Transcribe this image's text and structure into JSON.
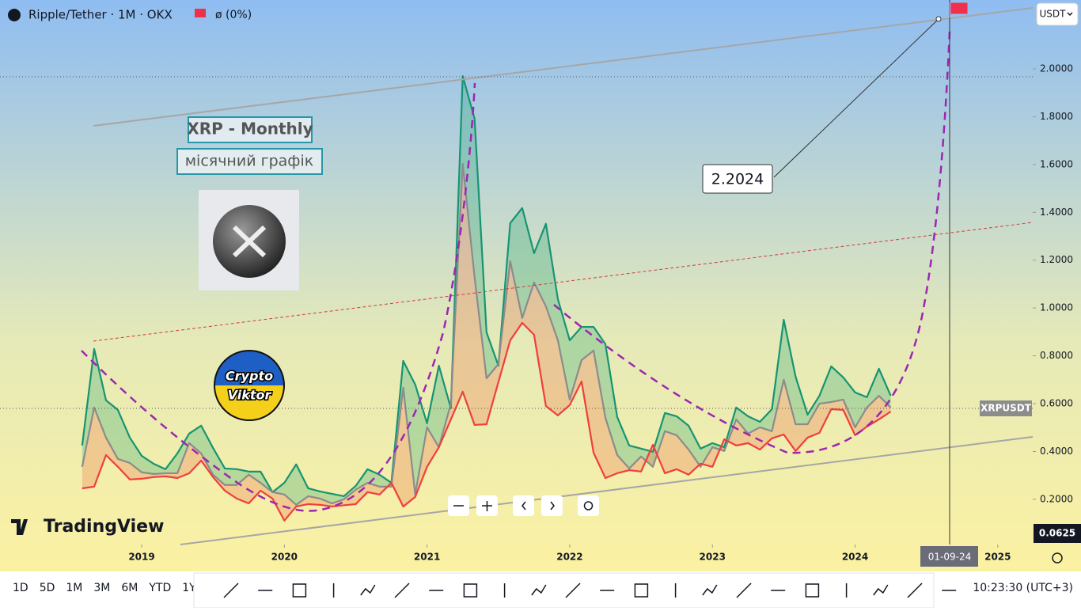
{
  "header": {
    "symbol": "Ripple/Tether · 1M · OKX",
    "change": "ø (0%)",
    "currency": "USDT"
  },
  "chart_data": {
    "type": "line",
    "x": [
      2018.583,
      2018.667,
      2018.75,
      2018.833,
      2018.917,
      2019,
      2019.083,
      2019.167,
      2019.25,
      2019.333,
      2019.417,
      2019.5,
      2019.583,
      2019.667,
      2019.75,
      2019.833,
      2019.917,
      2020,
      2020.083,
      2020.167,
      2020.25,
      2020.333,
      2020.417,
      2020.5,
      2020.583,
      2020.667,
      2020.75,
      2020.833,
      2020.917,
      2021,
      2021.083,
      2021.167,
      2021.25,
      2021.333,
      2021.417,
      2021.5,
      2021.583,
      2021.667,
      2021.75,
      2021.833,
      2021.917,
      2022,
      2022.083,
      2022.167,
      2022.25,
      2022.333,
      2022.417,
      2022.5,
      2022.583,
      2022.667,
      2022.75,
      2022.833,
      2022.917,
      2023,
      2023.083,
      2023.167,
      2023.25,
      2023.333,
      2023.417,
      2023.5,
      2023.583,
      2023.667,
      2023.75,
      2023.833,
      2023.917,
      2024,
      2024.083,
      2024.167,
      2024.25
    ],
    "series": [
      {
        "color": "#169473",
        "values": [
          0.425,
          0.829,
          0.614,
          0.574,
          0.458,
          0.382,
          0.349,
          0.326,
          0.392,
          0.475,
          0.508,
          0.415,
          0.329,
          0.326,
          0.316,
          0.316,
          0.23,
          0.269,
          0.346,
          0.246,
          0.233,
          0.223,
          0.213,
          0.256,
          0.326,
          0.303,
          0.269,
          0.779,
          0.68,
          0.518,
          0.759,
          0.581,
          1.97,
          1.792,
          0.898,
          0.759,
          1.355,
          1.418,
          1.229,
          1.352,
          1.037,
          0.865,
          0.921,
          0.921,
          0.849,
          0.544,
          0.425,
          0.412,
          0.399,
          0.561,
          0.547,
          0.508,
          0.412,
          0.435,
          0.418,
          0.584,
          0.547,
          0.524,
          0.577,
          0.951,
          0.713,
          0.554,
          0.633,
          0.756,
          0.71,
          0.647,
          0.627,
          0.746,
          0.633
        ]
      },
      {
        "color": "#8c8c8c",
        "values": [
          0.336,
          0.584,
          0.458,
          0.369,
          0.352,
          0.313,
          0.306,
          0.309,
          0.309,
          0.435,
          0.392,
          0.303,
          0.26,
          0.26,
          0.303,
          0.269,
          0.23,
          0.22,
          0.177,
          0.213,
          0.203,
          0.183,
          0.2,
          0.24,
          0.269,
          0.253,
          0.253,
          0.667,
          0.22,
          0.501,
          0.418,
          0.6,
          1.603,
          1.13,
          0.706,
          0.766,
          1.196,
          0.958,
          1.107,
          1.007,
          0.865,
          0.617,
          0.782,
          0.822,
          0.541,
          0.385,
          0.329,
          0.379,
          0.336,
          0.485,
          0.468,
          0.408,
          0.336,
          0.418,
          0.402,
          0.534,
          0.475,
          0.501,
          0.485,
          0.7,
          0.514,
          0.514,
          0.6,
          0.607,
          0.617,
          0.501,
          0.584,
          0.633,
          0.584
        ]
      },
      {
        "color": "#f03e3e",
        "values": [
          0.246,
          0.253,
          0.385,
          0.336,
          0.283,
          0.286,
          0.293,
          0.296,
          0.289,
          0.309,
          0.362,
          0.293,
          0.236,
          0.203,
          0.183,
          0.236,
          0.203,
          0.111,
          0.17,
          0.18,
          0.177,
          0.17,
          0.175,
          0.18,
          0.23,
          0.22,
          0.269,
          0.17,
          0.21,
          0.336,
          0.418,
          0.534,
          0.65,
          0.511,
          0.514,
          0.69,
          0.865,
          0.938,
          0.888,
          0.59,
          0.551,
          0.594,
          0.693,
          0.395,
          0.289,
          0.309,
          0.322,
          0.316,
          0.428,
          0.309,
          0.326,
          0.303,
          0.349,
          0.336,
          0.451,
          0.425,
          0.435,
          0.408,
          0.455,
          0.471,
          0.402,
          0.458,
          0.478,
          0.577,
          0.574,
          0.468,
          0.504,
          0.534,
          0.567
        ]
      }
    ],
    "xlim": [
      2018.007,
      2025.245
    ],
    "xticks": [
      2019,
      2020,
      2021,
      2022,
      2023,
      2024,
      2025
    ],
    "ylim": [
      0.011,
      2.288
    ],
    "yticks": [
      {
        "value": 0.2,
        "label": "0.2000"
      },
      {
        "value": 0.4,
        "label": "0.4000"
      },
      {
        "value": 0.6,
        "label": "0.6000"
      },
      {
        "value": 0.8,
        "label": "0.8000"
      },
      {
        "value": 1.0,
        "label": "1.0000"
      },
      {
        "value": 1.2,
        "label": "1.2000"
      },
      {
        "value": 1.4,
        "label": "1.4000"
      },
      {
        "value": 1.6,
        "label": "1.6000"
      },
      {
        "value": 1.8,
        "label": "1.8000"
      },
      {
        "value": 2.0,
        "label": "2.0000"
      }
    ]
  },
  "annotations": {
    "title": "XRP - Monthly",
    "subtitle": "місячний графік",
    "badge_top": "Crypto",
    "badge_bottom": "Viktor",
    "callout": "2.2024",
    "symbol_label": "XRPUSDT",
    "crosshair_date": "01-09-24",
    "crosshair_price": "0.0625",
    "brand": "TradingView"
  },
  "footer": {
    "ranges": [
      "1D",
      "5D",
      "1M",
      "3M",
      "6M",
      "YTD",
      "1Y"
    ],
    "clock": "10:23:30 (UTC+3)"
  }
}
